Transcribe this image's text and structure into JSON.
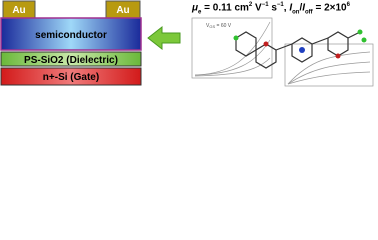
{
  "device": {
    "contacts": [
      "Au",
      "Au"
    ],
    "layers": [
      "semiconductor",
      "PS-SiO2 (Dielectric)",
      "n+-Si (Gate)"
    ]
  },
  "headline": {
    "parts": [
      "μ",
      "e",
      " = 0.11 cm",
      "2",
      " V",
      "−1",
      " s",
      "−1",
      ", ",
      "I",
      "on",
      "/",
      "I",
      "off",
      " = 2×10",
      "6"
    ]
  },
  "inset": {
    "label": "V",
    "label_sub": "GS",
    "label_rest": " = 60 V"
  }
}
